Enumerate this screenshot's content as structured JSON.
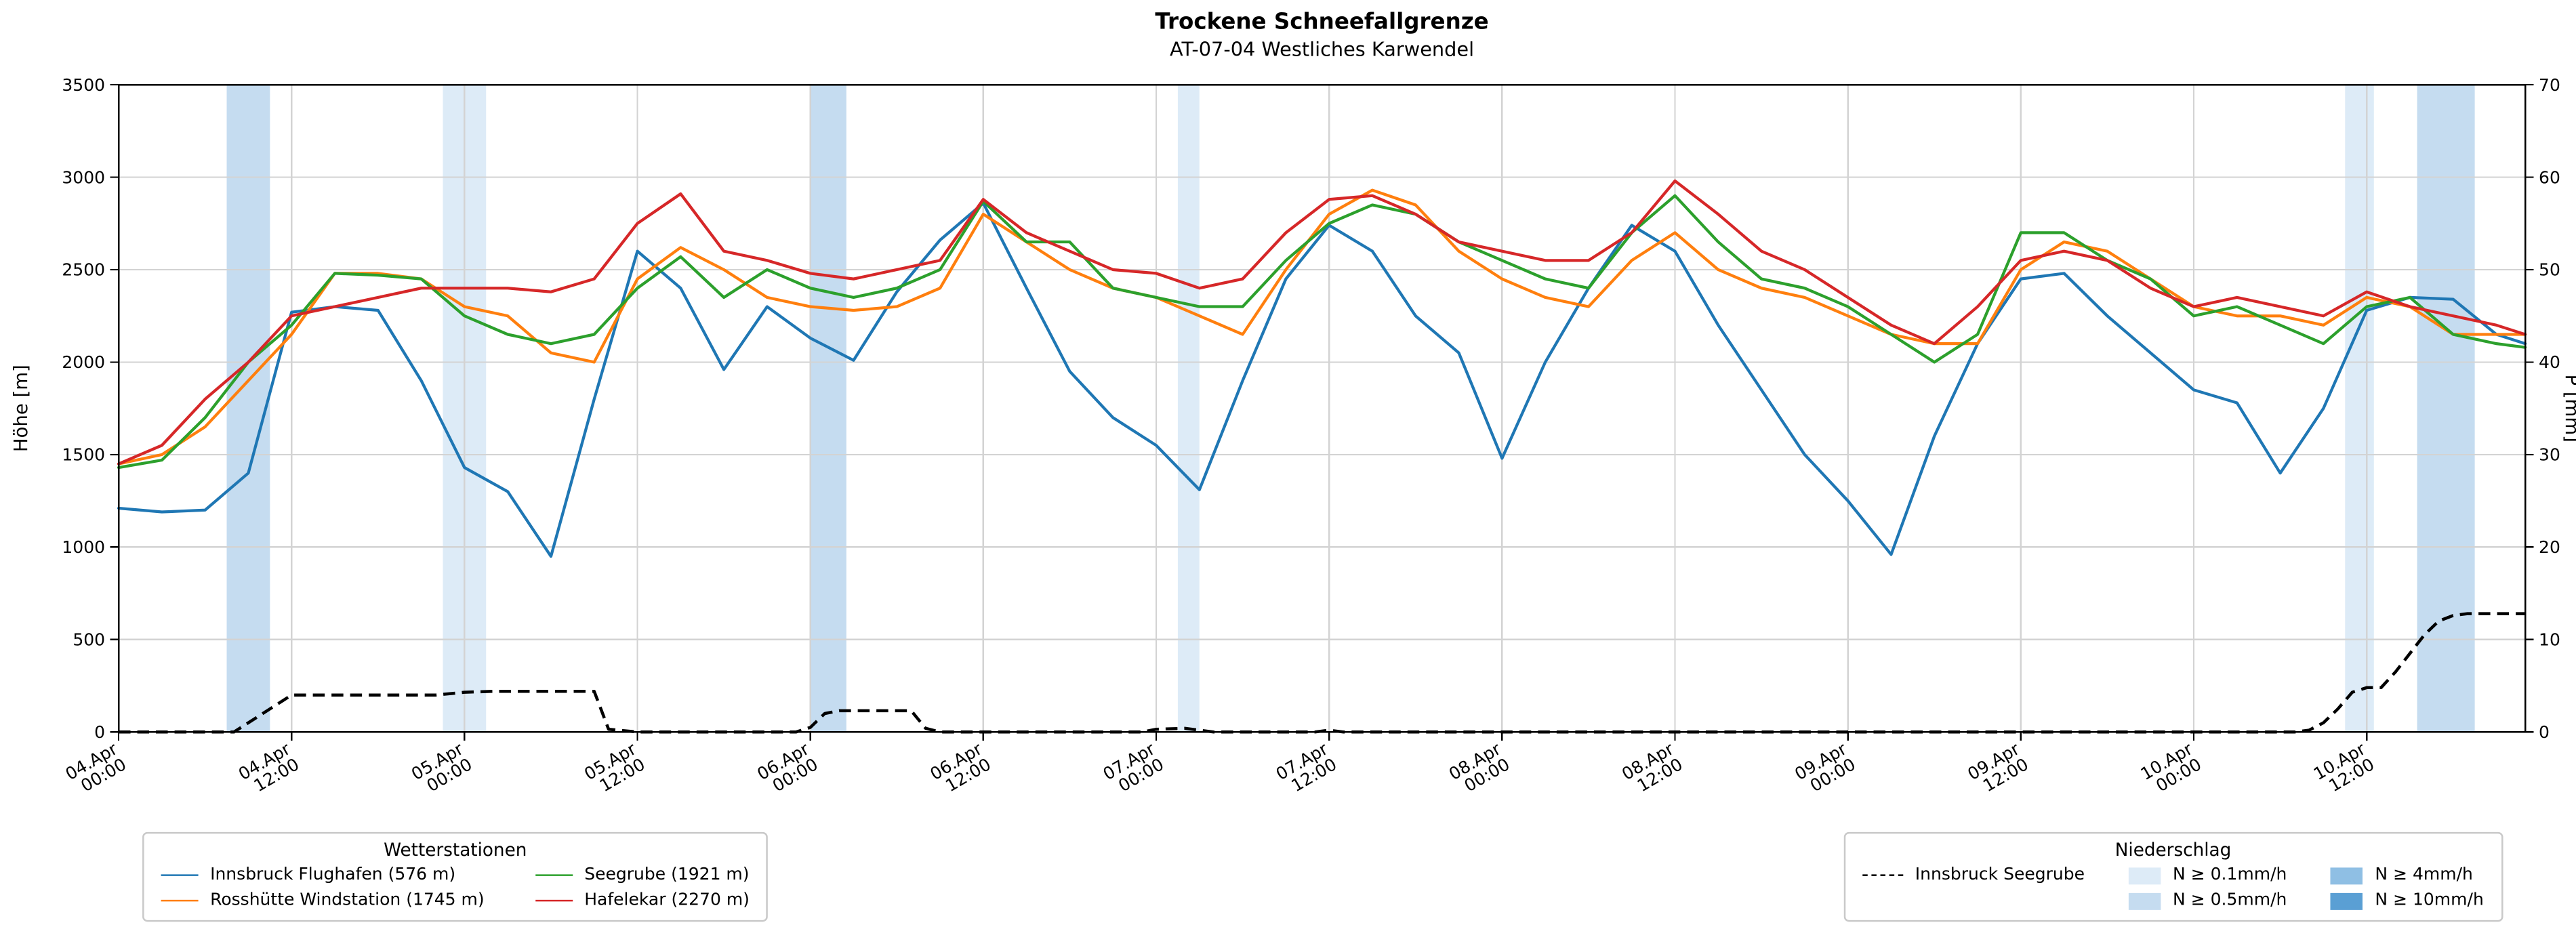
{
  "chart_data": {
    "type": "line",
    "title": "Trockene Schneefallgrenze",
    "subtitle": "AT-07-04 Westliches Karwendel",
    "ylabel_left": "Höhe [m]",
    "ylabel_right": "P [mm]",
    "ylim_left": [
      0,
      3500
    ],
    "ylim_right": [
      0,
      70
    ],
    "yticks_left": [
      0,
      500,
      1000,
      1500,
      2000,
      2500,
      3000,
      3500
    ],
    "yticks_right": [
      0,
      10,
      20,
      30,
      40,
      50,
      60,
      70
    ],
    "x_hours_range": [
      0,
      167
    ],
    "grid": true,
    "grid_color": "#d3d3d3",
    "xticks": [
      {
        "hour": 0,
        "line1": "04.Apr",
        "line2": "00:00"
      },
      {
        "hour": 12,
        "line1": "04.Apr",
        "line2": "12:00"
      },
      {
        "hour": 24,
        "line1": "05.Apr",
        "line2": "00:00"
      },
      {
        "hour": 36,
        "line1": "05.Apr",
        "line2": "12:00"
      },
      {
        "hour": 48,
        "line1": "06.Apr",
        "line2": "00:00"
      },
      {
        "hour": 60,
        "line1": "06.Apr",
        "line2": "12:00"
      },
      {
        "hour": 72,
        "line1": "07.Apr",
        "line2": "00:00"
      },
      {
        "hour": 84,
        "line1": "07.Apr",
        "line2": "12:00"
      },
      {
        "hour": 96,
        "line1": "08.Apr",
        "line2": "00:00"
      },
      {
        "hour": 108,
        "line1": "08.Apr",
        "line2": "12:00"
      },
      {
        "hour": 120,
        "line1": "09.Apr",
        "line2": "00:00"
      },
      {
        "hour": 132,
        "line1": "09.Apr",
        "line2": "12:00"
      },
      {
        "hour": 144,
        "line1": "10.Apr",
        "line2": "00:00"
      },
      {
        "hour": 156,
        "line1": "10.Apr",
        "line2": "12:00"
      }
    ],
    "hours": [
      0,
      3,
      6,
      9,
      12,
      15,
      18,
      21,
      24,
      27,
      30,
      33,
      36,
      39,
      42,
      45,
      48,
      51,
      54,
      57,
      60,
      63,
      66,
      69,
      72,
      75,
      78,
      81,
      84,
      87,
      90,
      93,
      96,
      99,
      102,
      105,
      108,
      111,
      114,
      117,
      120,
      123,
      126,
      129,
      132,
      135,
      138,
      141,
      144,
      147,
      150,
      153,
      156,
      159,
      162,
      165,
      167
    ],
    "series": [
      {
        "id": "innsbruck-flughafen",
        "name": "Innsbruck Flughafen (576 m)",
        "color": "#1f77b4",
        "values": [
          1210,
          1190,
          1200,
          1400,
          2270,
          2300,
          2280,
          1900,
          1430,
          1300,
          950,
          1800,
          2600,
          2400,
          1960,
          2300,
          2130,
          2010,
          2380,
          2660,
          2860,
          2400,
          1950,
          1700,
          1550,
          1310,
          1900,
          2450,
          2740,
          2600,
          2250,
          2050,
          1480,
          2000,
          2400,
          2740,
          2600,
          2200,
          1850,
          1500,
          1250,
          960,
          1600,
          2100,
          2450,
          2480,
          2250,
          2050,
          1850,
          1780,
          1400,
          1750,
          2280,
          2350,
          2340,
          2150,
          2100
        ]
      },
      {
        "id": "rosshuette-windstation",
        "name": "Rosshütte Windstation (1745 m)",
        "color": "#ff7f0e",
        "values": [
          1450,
          1500,
          1650,
          1900,
          2150,
          2480,
          2480,
          2450,
          2300,
          2250,
          2050,
          2000,
          2450,
          2620,
          2500,
          2350,
          2300,
          2280,
          2300,
          2400,
          2800,
          2650,
          2500,
          2400,
          2350,
          2250,
          2150,
          2500,
          2800,
          2930,
          2850,
          2600,
          2450,
          2350,
          2300,
          2550,
          2700,
          2500,
          2400,
          2350,
          2250,
          2150,
          2100,
          2100,
          2500,
          2650,
          2600,
          2450,
          2300,
          2250,
          2250,
          2200,
          2350,
          2300,
          2150,
          2150,
          2150
        ]
      },
      {
        "id": "seegrube",
        "name": "Seegrube (1921 m)",
        "color": "#2ca02c",
        "values": [
          1430,
          1470,
          1700,
          2000,
          2200,
          2480,
          2470,
          2450,
          2250,
          2150,
          2100,
          2150,
          2400,
          2570,
          2350,
          2500,
          2400,
          2350,
          2400,
          2500,
          2870,
          2650,
          2650,
          2400,
          2350,
          2300,
          2300,
          2550,
          2750,
          2850,
          2800,
          2650,
          2550,
          2450,
          2400,
          2700,
          2900,
          2650,
          2450,
          2400,
          2300,
          2150,
          2000,
          2150,
          2700,
          2700,
          2550,
          2450,
          2250,
          2300,
          2200,
          2100,
          2300,
          2350,
          2150,
          2100,
          2080
        ]
      },
      {
        "id": "hafelekar",
        "name": "Hafelekar (2270 m)",
        "color": "#d62728",
        "values": [
          1450,
          1550,
          1800,
          2000,
          2250,
          2300,
          2350,
          2400,
          2400,
          2400,
          2380,
          2450,
          2750,
          2910,
          2600,
          2550,
          2480,
          2450,
          2500,
          2550,
          2880,
          2700,
          2600,
          2500,
          2480,
          2400,
          2450,
          2700,
          2880,
          2900,
          2800,
          2650,
          2600,
          2550,
          2550,
          2700,
          2980,
          2800,
          2600,
          2500,
          2350,
          2200,
          2100,
          2300,
          2550,
          2600,
          2550,
          2400,
          2300,
          2350,
          2300,
          2250,
          2380,
          2300,
          2250,
          2200,
          2150
        ]
      }
    ],
    "precip_line": {
      "id": "innsbruck-seegrube",
      "name": "Innsbruck Seegrube",
      "color": "#000000",
      "dashed": true,
      "hours": [
        0,
        8,
        10,
        12,
        14,
        22,
        24,
        26,
        33,
        34,
        36,
        47,
        48,
        49,
        50,
        55,
        56,
        57,
        71,
        72,
        74,
        75,
        76,
        83,
        84,
        85,
        151,
        152,
        153,
        154,
        155,
        156,
        157,
        158,
        159,
        160,
        161,
        162,
        163,
        167
      ],
      "values_mm": [
        0,
        0,
        2,
        4,
        4,
        4,
        4.3,
        4.4,
        4.4,
        0.3,
        0,
        0,
        0.5,
        2,
        2.3,
        2.3,
        0.4,
        0,
        0,
        0.3,
        0.4,
        0.2,
        0,
        0,
        0.2,
        0,
        0,
        0.2,
        1,
        2.5,
        4.3,
        4.8,
        4.8,
        6.5,
        8.5,
        10.5,
        12,
        12.6,
        12.8,
        12.8
      ]
    },
    "precip_bands": [
      {
        "start_hour": 7.5,
        "end_hour": 10.5,
        "level": "N ≥ 0.5mm/h",
        "color": "#c5dcf0"
      },
      {
        "start_hour": 22.5,
        "end_hour": 25.5,
        "level": "N ≥ 0.1mm/h",
        "color": "#ddebf7"
      },
      {
        "start_hour": 48,
        "end_hour": 50.5,
        "level": "N ≥ 0.5mm/h",
        "color": "#c5dcf0"
      },
      {
        "start_hour": 73.5,
        "end_hour": 75,
        "level": "N ≥ 0.1mm/h",
        "color": "#ddebf7"
      },
      {
        "start_hour": 154.5,
        "end_hour": 156.5,
        "level": "N ≥ 0.1mm/h",
        "color": "#ddebf7"
      },
      {
        "start_hour": 159.5,
        "end_hour": 163.5,
        "level": "N ≥ 0.5mm/h",
        "color": "#c5dcf0"
      }
    ],
    "station_legend": {
      "title": "Wetterstationen"
    },
    "precip_legend": {
      "title": "Niederschlag",
      "line_label": "Innsbruck Seegrube",
      "items": [
        {
          "label": "N ≥ 0.1mm/h",
          "color": "#ddebf7"
        },
        {
          "label": "N ≥ 0.5mm/h",
          "color": "#c5dcf0"
        },
        {
          "label": "N ≥ 4mm/h",
          "color": "#8fbfe4"
        },
        {
          "label": "N ≥ 10mm/h",
          "color": "#5a9fd4"
        }
      ]
    }
  }
}
